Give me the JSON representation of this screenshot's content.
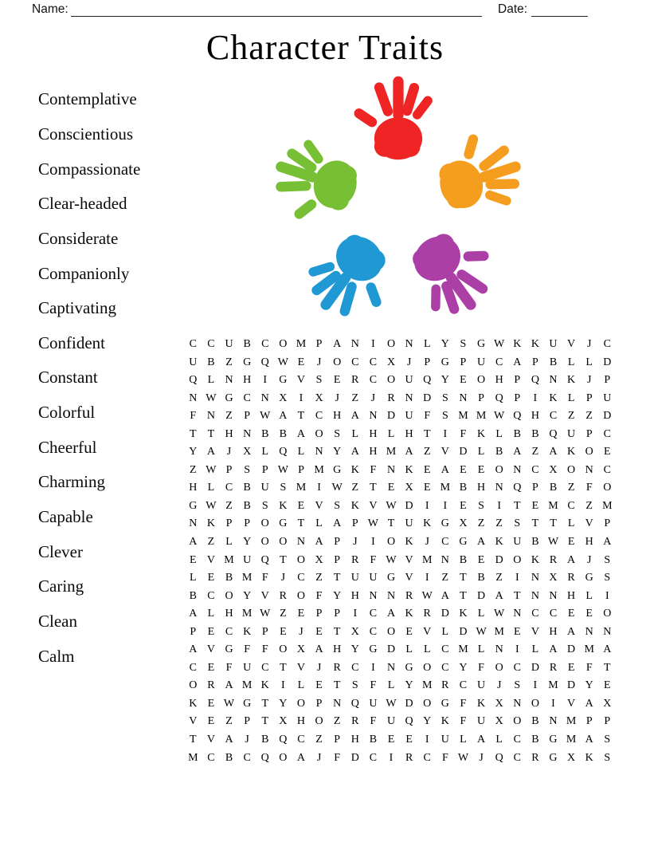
{
  "header": {
    "name_label": "Name:",
    "date_label": "Date:"
  },
  "title": "Character Traits",
  "word_list": [
    "Contemplative",
    "Conscientious",
    "Compassionate",
    "Clear-headed",
    "Considerate",
    "Companionly",
    "Captivating",
    "Confident",
    "Constant",
    "Colorful",
    "Cheerful",
    "Charming",
    "Capable",
    "Clever",
    "Caring",
    "Clean",
    "Calm"
  ],
  "hands": {
    "icon": "five-handprints-circle",
    "colors": {
      "red": "#ee2524",
      "orange": "#f59d1e",
      "purple": "#ab3fa5",
      "blue": "#2098d4",
      "green": "#77bf34"
    }
  },
  "grid": {
    "rows_count": 24,
    "cols_count": 24,
    "rows": [
      "CCUBCOMPANIONLYSGWKKUVJC",
      "UBZGQWEJOCCXJPGPUCAPBLLD",
      "QLNHIGVSERCOUQYEOHPQNKJP",
      "NWGCNXIXJZJRNDSNPQPIKLPU",
      "FNZPWATCHANDUFSMMWQHCZZD",
      "TTHNBBAOSLHLHTIFKLBBQUPC",
      "YAJXLQLNYAHMAZVDLBAZAKOE",
      "ZWPSPWPMGKFNKEAEEONCXONC",
      "HLCBUSMIWZTEXEMBHNQPBZFO",
      "GWZBSKEVSKVWDIIESITEMCZM",
      "NKPPOGTLAPWTUKGXZZSTTLVP",
      "AZLYOONAPJIOKJCGAKUBWEHA",
      "EVMUQTOXPRFWVMNBEDOKRAJS",
      "LEBMFJCZTUUGVIZTBZINXRGS",
      "BCOYVROFYHNNRWATDATNNHLI",
      "ALHMWZEPPICAKRDKLWNCCEEO",
      "PECKPEJETXCOEVLDWMEVHANN",
      "AVGFFOXAHYGDLLCMLNILADMA",
      "CEFUCTVJRCINGOCYFOCDREFT",
      "ORAMKILETSFLYMRCUJSIMDYE",
      "KEWGTYOPNQUWDOGFKXNOIVAX",
      "VEZPTXHOZRFUQYKFUXOBNMPP",
      "TVAJBQCZPHBEEIULALCBGMAS",
      "MCBCQOAJFDCIRCFWJQCRGXKS"
    ]
  }
}
